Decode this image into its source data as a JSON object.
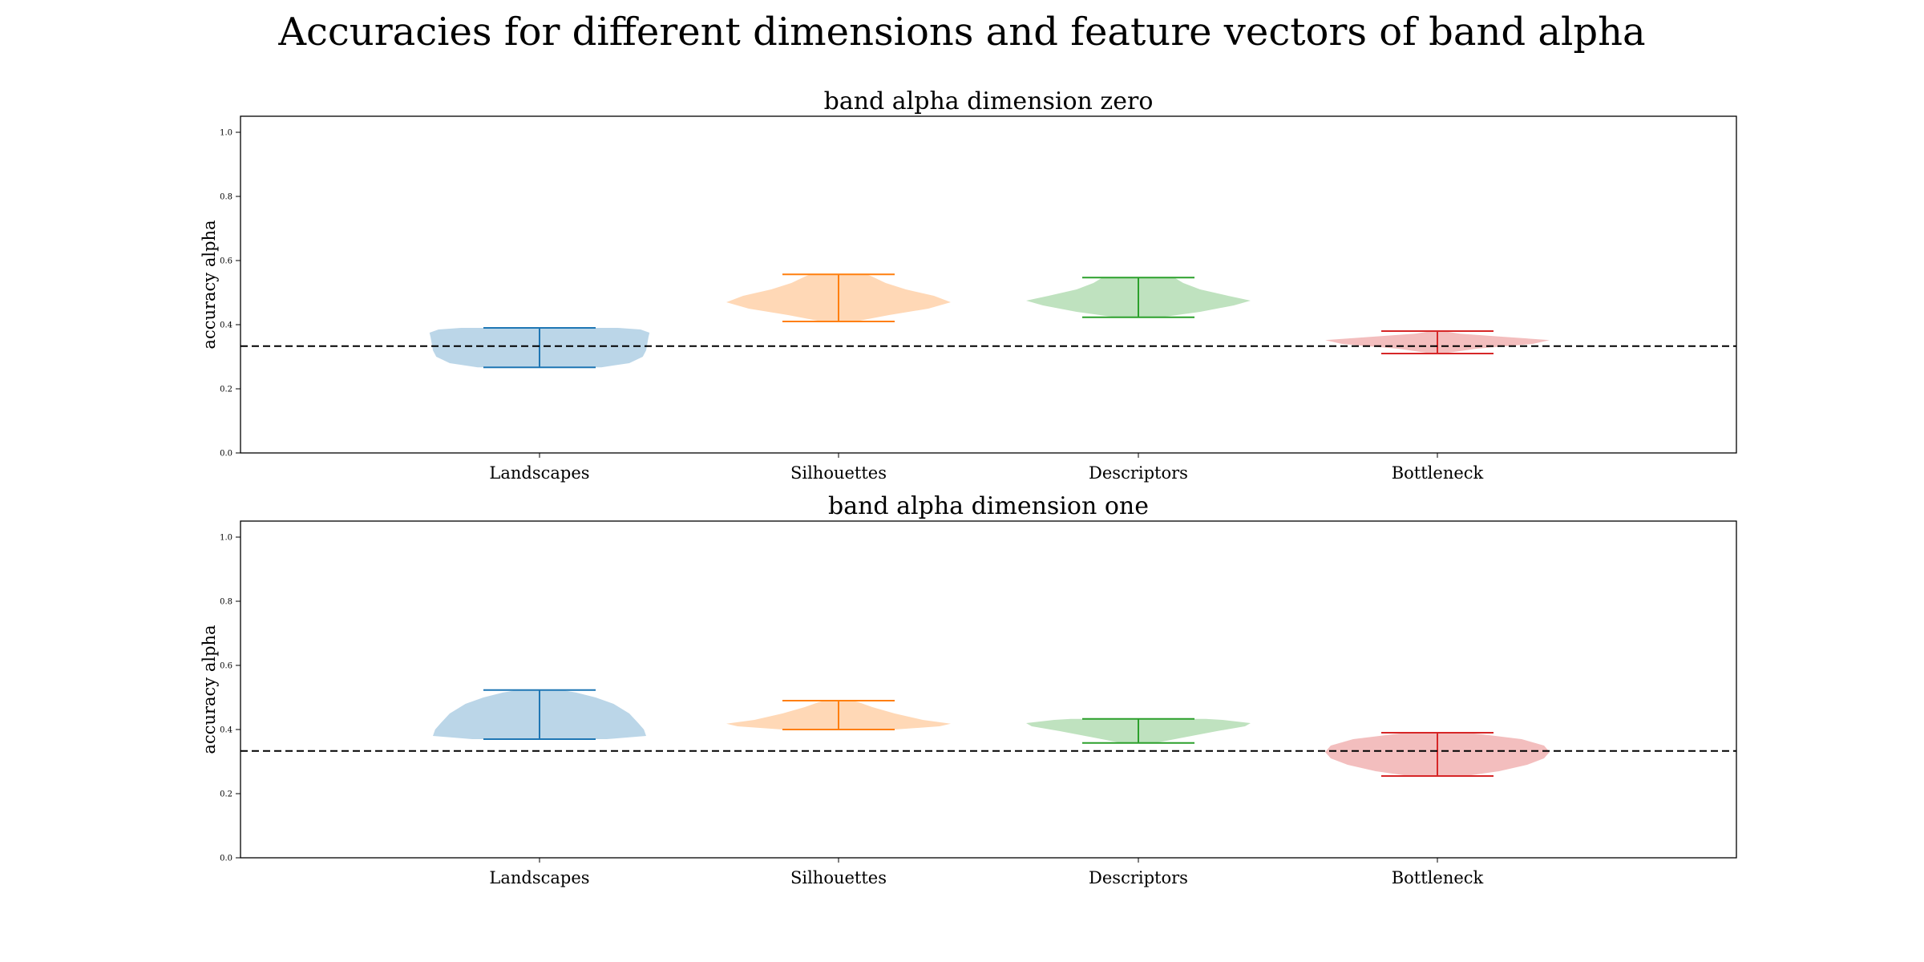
{
  "figure": {
    "title": "Accuracies for different dimensions and feature vectors of band alpha"
  },
  "chart_data": [
    {
      "type": "violin",
      "title": "band alpha dimension zero",
      "xlabel": "",
      "ylabel": "accuracy alpha",
      "ylim": [
        0.0,
        1.05
      ],
      "yticks": [
        "0.0",
        "0.2",
        "0.4",
        "0.6",
        "0.8",
        "1.0"
      ],
      "categories": [
        "Landscapes",
        "Silhouettes",
        "Descriptors",
        "Bottleneck"
      ],
      "colors": [
        "#1f77b4",
        "#ff7f0e",
        "#2ca02c",
        "#d62728"
      ],
      "baseline": 0.333,
      "grid": false,
      "series": [
        {
          "category": "Landscapes",
          "min": 0.267,
          "max": 0.39,
          "density": [
            [
              0.267,
              0.55
            ],
            [
              0.28,
              0.8
            ],
            [
              0.3,
              0.92
            ],
            [
              0.32,
              0.95
            ],
            [
              0.34,
              0.96
            ],
            [
              0.36,
              0.97
            ],
            [
              0.375,
              0.98
            ],
            [
              0.385,
              0.9
            ],
            [
              0.39,
              0.7
            ]
          ]
        },
        {
          "category": "Silhouettes",
          "min": 0.41,
          "max": 0.557,
          "density": [
            [
              0.41,
              0.15
            ],
            [
              0.43,
              0.45
            ],
            [
              0.45,
              0.8
            ],
            [
              0.47,
              1.0
            ],
            [
              0.49,
              0.85
            ],
            [
              0.51,
              0.6
            ],
            [
              0.53,
              0.42
            ],
            [
              0.55,
              0.3
            ],
            [
              0.557,
              0.25
            ]
          ]
        },
        {
          "category": "Descriptors",
          "min": 0.423,
          "max": 0.547,
          "density": [
            [
              0.423,
              0.2
            ],
            [
              0.44,
              0.55
            ],
            [
              0.46,
              0.85
            ],
            [
              0.475,
              1.0
            ],
            [
              0.49,
              0.8
            ],
            [
              0.51,
              0.55
            ],
            [
              0.53,
              0.4
            ],
            [
              0.547,
              0.32
            ]
          ]
        },
        {
          "category": "Bottleneck",
          "min": 0.31,
          "max": 0.38,
          "density": [
            [
              0.31,
              0.05
            ],
            [
              0.325,
              0.35
            ],
            [
              0.34,
              0.85
            ],
            [
              0.352,
              1.0
            ],
            [
              0.362,
              0.6
            ],
            [
              0.372,
              0.2
            ],
            [
              0.38,
              0.05
            ]
          ]
        }
      ]
    },
    {
      "type": "violin",
      "title": "band alpha dimension one",
      "xlabel": "",
      "ylabel": "accuracy alpha",
      "ylim": [
        0.0,
        1.05
      ],
      "yticks": [
        "0.0",
        "0.2",
        "0.4",
        "0.6",
        "0.8",
        "1.0"
      ],
      "categories": [
        "Landscapes",
        "Silhouettes",
        "Descriptors",
        "Bottleneck"
      ],
      "colors": [
        "#1f77b4",
        "#ff7f0e",
        "#2ca02c",
        "#d62728"
      ],
      "baseline": 0.333,
      "grid": false,
      "series": [
        {
          "category": "Landscapes",
          "min": 0.37,
          "max": 0.523,
          "density": [
            [
              0.37,
              0.6
            ],
            [
              0.38,
              0.95
            ],
            [
              0.4,
              0.93
            ],
            [
              0.42,
              0.88
            ],
            [
              0.45,
              0.8
            ],
            [
              0.48,
              0.66
            ],
            [
              0.5,
              0.5
            ],
            [
              0.515,
              0.33
            ],
            [
              0.523,
              0.2
            ]
          ]
        },
        {
          "category": "Silhouettes",
          "min": 0.4,
          "max": 0.49,
          "density": [
            [
              0.4,
              0.5
            ],
            [
              0.41,
              0.9
            ],
            [
              0.418,
              1.0
            ],
            [
              0.43,
              0.75
            ],
            [
              0.45,
              0.5
            ],
            [
              0.47,
              0.3
            ],
            [
              0.485,
              0.18
            ],
            [
              0.49,
              0.12
            ]
          ]
        },
        {
          "category": "Descriptors",
          "min": 0.358,
          "max": 0.433,
          "density": [
            [
              0.358,
              0.15
            ],
            [
              0.375,
              0.4
            ],
            [
              0.395,
              0.7
            ],
            [
              0.41,
              0.95
            ],
            [
              0.42,
              1.0
            ],
            [
              0.43,
              0.75
            ],
            [
              0.433,
              0.6
            ]
          ]
        },
        {
          "category": "Bottleneck",
          "min": 0.255,
          "max": 0.39,
          "density": [
            [
              0.255,
              0.25
            ],
            [
              0.27,
              0.55
            ],
            [
              0.29,
              0.8
            ],
            [
              0.31,
              0.95
            ],
            [
              0.33,
              1.0
            ],
            [
              0.35,
              0.95
            ],
            [
              0.37,
              0.75
            ],
            [
              0.385,
              0.4
            ],
            [
              0.39,
              0.25
            ]
          ]
        }
      ]
    }
  ]
}
